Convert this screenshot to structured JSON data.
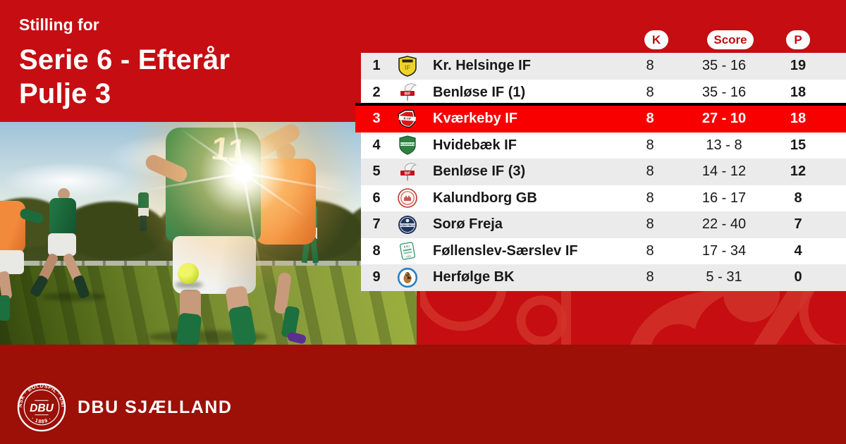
{
  "header": {
    "kicker": "Stilling for",
    "title": "Serie 6 - Efterår",
    "subtitle": "Pulje 3"
  },
  "standings": {
    "columns": {
      "played_label": "K",
      "score_label": "Score",
      "points_label": "P"
    },
    "rows": [
      {
        "position": "1",
        "team": "Kr. Helsinge IF",
        "played": "8",
        "score": "35 - 16",
        "points": "19",
        "logo": "helsinge",
        "highlighted": false
      },
      {
        "position": "2",
        "team": "Benløse IF (1)",
        "played": "8",
        "score": "35 - 16",
        "points": "18",
        "logo": "benlose",
        "highlighted": false
      },
      {
        "position": "3",
        "team": "Kværkeby IF",
        "played": "8",
        "score": "27 - 10",
        "points": "18",
        "logo": "kvaerkeby",
        "highlighted": true
      },
      {
        "position": "4",
        "team": "Hvidebæk IF",
        "played": "8",
        "score": "13 - 8",
        "points": "15",
        "logo": "hvidebaek",
        "highlighted": false
      },
      {
        "position": "5",
        "team": "Benløse IF (3)",
        "played": "8",
        "score": "14 - 12",
        "points": "12",
        "logo": "benlose",
        "highlighted": false
      },
      {
        "position": "6",
        "team": "Kalundborg GB",
        "played": "8",
        "score": "16 - 17",
        "points": "8",
        "logo": "kalundborg",
        "highlighted": false
      },
      {
        "position": "7",
        "team": "Sorø Freja",
        "played": "8",
        "score": "22 - 40",
        "points": "7",
        "logo": "soro",
        "highlighted": false
      },
      {
        "position": "8",
        "team": "Føllenslev-Særslev IF",
        "played": "8",
        "score": "17 - 34",
        "points": "4",
        "logo": "follenslev",
        "highlighted": false
      },
      {
        "position": "9",
        "team": "Herfølge BK",
        "played": "8",
        "score": "5 - 31",
        "points": "0",
        "logo": "herfolge",
        "highlighted": false
      }
    ]
  },
  "photo": {
    "jersey_number": "11"
  },
  "footer": {
    "brand_name": "DBU SJÆLLAND",
    "crest": {
      "ring_text": "DANSK · BOLDSPIL · UNION",
      "center_text": "DBU",
      "year_text": "· 1889 ·"
    }
  },
  "colors": {
    "background_red": "#c60d12",
    "highlight_red": "#f80000",
    "bottom_band_red": "#9c1007",
    "row_alt_gray": "#ebebeb",
    "pill_text_red": "#bf0d11",
    "separator_black": "#000000"
  }
}
